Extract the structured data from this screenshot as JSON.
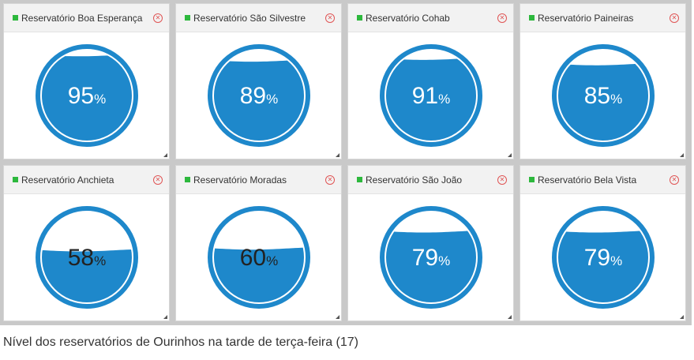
{
  "colors": {
    "water": "#1e88cb",
    "ring": "#1e88cb",
    "text_inside": "#ffffff",
    "text_outside": "#222222",
    "status": "#2db83d",
    "close": "#e05555"
  },
  "icons": {
    "close": "close-circle-icon",
    "status": "status-square-icon",
    "grip": "resize-grip-icon"
  },
  "gauges": [
    {
      "title": "Reservatório Boa Esperança",
      "level": 95,
      "value": "95",
      "unit": "%"
    },
    {
      "title": "Reservatório São Silvestre",
      "level": 89,
      "value": "89",
      "unit": "%"
    },
    {
      "title": "Reservatório Cohab",
      "level": 91,
      "value": "91",
      "unit": "%"
    },
    {
      "title": "Reservatório Paineiras",
      "level": 85,
      "value": "85",
      "unit": "%"
    },
    {
      "title": "Reservatório Anchieta",
      "level": 58,
      "value": "58",
      "unit": "%"
    },
    {
      "title": "Reservatório Moradas",
      "level": 60,
      "value": "60",
      "unit": "%"
    },
    {
      "title": "Reservatório São João",
      "level": 79,
      "value": "79",
      "unit": "%"
    },
    {
      "title": "Reservatório Bela Vista",
      "level": 79,
      "value": "79",
      "unit": "%"
    }
  ],
  "caption": "Nível dos reservatórios de Ourinhos na tarde de terça-feira (17)"
}
